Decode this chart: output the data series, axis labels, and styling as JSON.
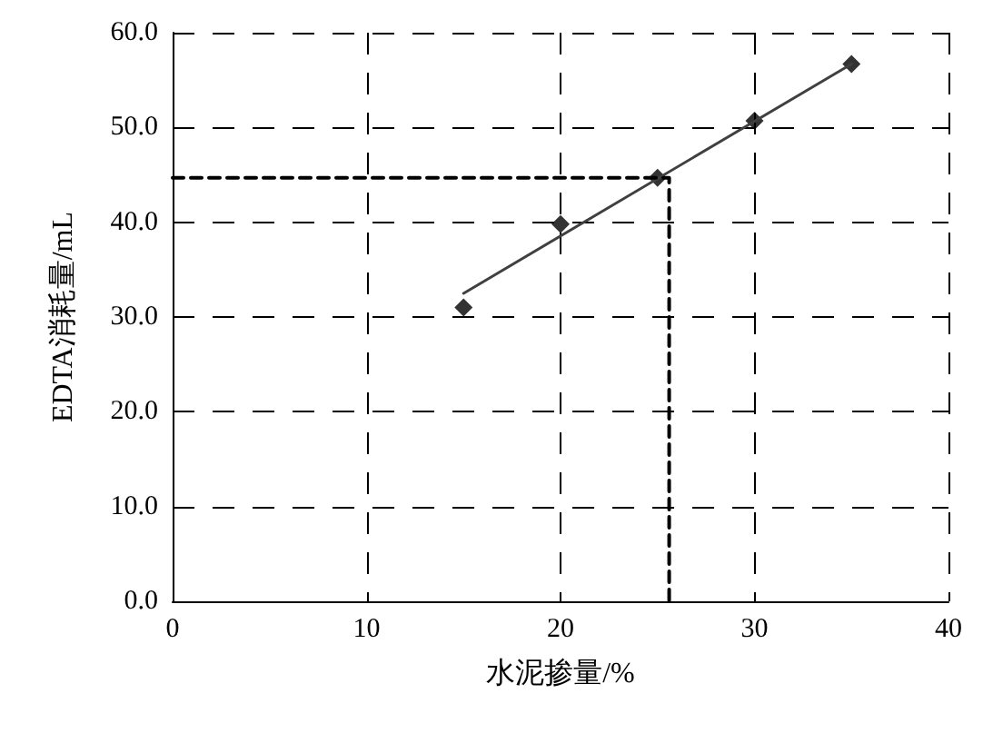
{
  "chart_data": {
    "type": "scatter",
    "xlabel": "水泥掺量/%",
    "ylabel": "EDTA消耗量/mL",
    "xlim": [
      0,
      40
    ],
    "xticks": [
      0,
      10,
      20,
      30,
      40
    ],
    "ylim": [
      0,
      60
    ],
    "yticks": [
      {
        "value": 0,
        "label": "0.0"
      },
      {
        "value": 10,
        "label": "10.0"
      },
      {
        "value": 20,
        "label": "20.0"
      },
      {
        "value": 30,
        "label": "30.0"
      },
      {
        "value": 40,
        "label": "40.0"
      },
      {
        "value": 50,
        "label": "50.0"
      },
      {
        "value": 60,
        "label": "60.0"
      }
    ],
    "grid": true,
    "series": [
      {
        "color": "#000000",
        "marker": "diamond",
        "x": [
          15,
          20,
          25,
          30,
          35
        ],
        "values": [
          31.0,
          39.8,
          44.7,
          50.7,
          56.7
        ]
      },
      {
        "type": "line",
        "color": "#404040",
        "marker": "none",
        "line_style": "solid",
        "x": [
          15,
          35
        ],
        "values": [
          32.5,
          56.7
        ]
      },
      {
        "type": "line",
        "color": "#000000",
        "marker": "none",
        "line_style": "dashed",
        "x": [
          0,
          25.6,
          25.6
        ],
        "values": [
          44.7,
          44.7,
          0
        ]
      }
    ]
  }
}
